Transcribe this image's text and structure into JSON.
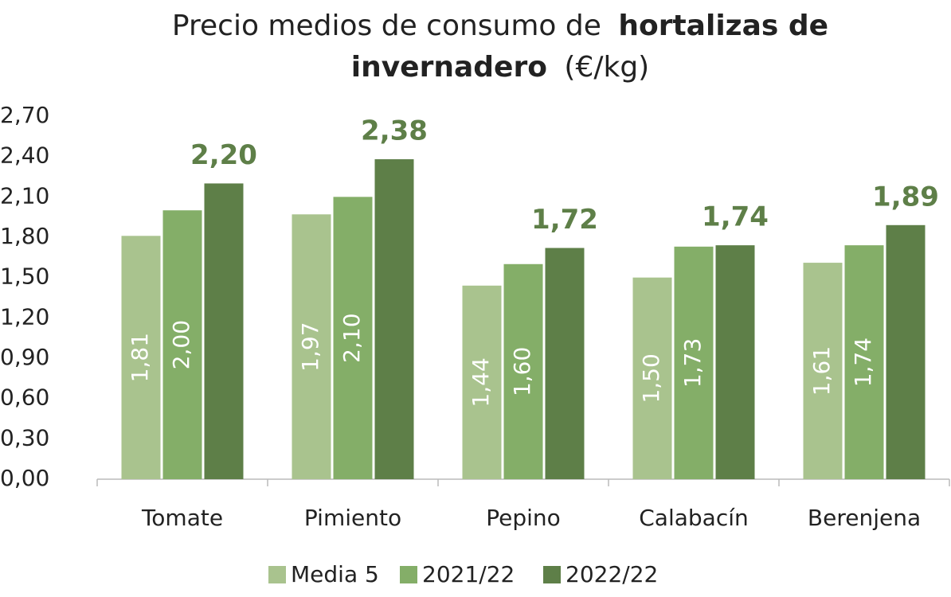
{
  "chart_data": {
    "type": "bar",
    "title": [
      {
        "text": "Precio medios de consumo de",
        "bold": false
      },
      {
        "text": "hortalizas de",
        "bold": true
      },
      {
        "text": "invernadero",
        "bold": true
      },
      {
        "text": "(€/kg)",
        "bold": false
      }
    ],
    "categories": [
      "Tomate",
      "Pimiento",
      "Pepino",
      "Calabacín",
      "Berenjena"
    ],
    "series": [
      {
        "name": "Media 5",
        "color": "#a9c38e",
        "values": [
          1.81,
          1.97,
          1.44,
          1.5,
          1.61
        ],
        "value_labels": [
          "1,81",
          "1,97",
          "1,44",
          "1,50",
          "1,61"
        ]
      },
      {
        "name": "2021/22",
        "color": "#84ae68",
        "values": [
          2.0,
          2.1,
          1.6,
          1.73,
          1.74
        ],
        "value_labels": [
          "2,00",
          "2,10",
          "1,60",
          "1,73",
          "1,74"
        ]
      },
      {
        "name": "2022/22",
        "color": "#5e7f48",
        "values": [
          2.2,
          2.38,
          1.72,
          1.74,
          1.89
        ],
        "value_labels": [
          "2,20",
          "2,38",
          "1,72",
          "1,74",
          "1,89"
        ]
      }
    ],
    "ylim": [
      0,
      2.7
    ],
    "yticks": [
      {
        "value": 0,
        "label": "0,00"
      },
      {
        "value": 0.3,
        "label": "0,30"
      },
      {
        "value": 0.6,
        "label": "0,60"
      },
      {
        "value": 0.9,
        "label": "0,90"
      },
      {
        "value": 1.2,
        "label": "1,20"
      },
      {
        "value": 1.5,
        "label": "1,50"
      },
      {
        "value": 1.8,
        "label": "1,80"
      },
      {
        "value": 2.1,
        "label": "2,10"
      },
      {
        "value": 2.4,
        "label": "2,40"
      },
      {
        "value": 2.7,
        "label": "2,70"
      }
    ],
    "grid": false,
    "legend": "bottom"
  }
}
